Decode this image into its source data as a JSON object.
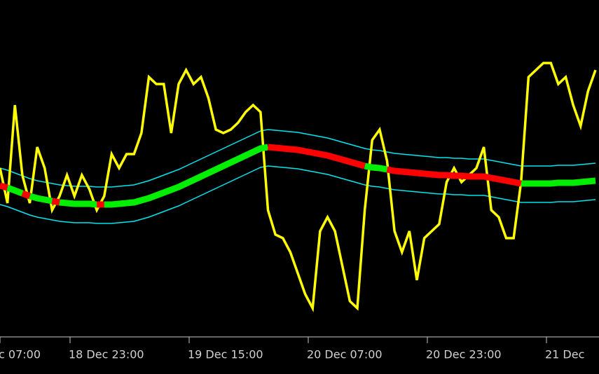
{
  "chart_data": {
    "type": "line",
    "x": [
      0,
      1,
      2,
      3,
      4,
      5,
      6,
      7,
      8,
      9,
      10,
      11,
      12,
      13,
      14,
      15,
      16,
      17,
      18,
      19,
      20,
      21,
      22,
      23,
      24,
      25,
      26,
      27,
      28,
      29,
      30,
      31,
      32,
      33,
      34,
      35,
      36,
      37,
      38,
      39,
      40,
      41,
      42,
      43,
      44,
      45,
      46,
      47,
      48,
      49,
      50,
      51,
      52,
      53,
      54,
      55,
      56,
      57,
      58,
      59,
      60,
      61,
      62,
      63,
      64,
      65,
      66,
      67,
      68,
      69,
      70,
      71,
      72,
      73,
      74,
      75,
      76,
      77,
      78,
      79,
      80
    ],
    "xlim": [
      0,
      80.47
    ],
    "xticks": [
      {
        "value": 0,
        "label": "c 07:00"
      },
      {
        "value": 9.41,
        "label": "18 Dec 23:00"
      },
      {
        "value": 25.41,
        "label": "19 Dec 15:00"
      },
      {
        "value": 41.41,
        "label": "20 Dec 07:00"
      },
      {
        "value": 57.41,
        "label": "20 Dec 23:00"
      },
      {
        "value": 73.41,
        "label": "21 Dec"
      }
    ],
    "ylim": [
      480,
      0
    ],
    "series": [
      {
        "color": "#00e5ee",
        "width": 1.5,
        "values": [
          240,
          243,
          247,
          251,
          255,
          258,
          260,
          262,
          264,
          265,
          266,
          266,
          266,
          267,
          267,
          267,
          266,
          265,
          264,
          261,
          258,
          254,
          250,
          246,
          242,
          237,
          232,
          227,
          222,
          217,
          212,
          207,
          202,
          197,
          192,
          187,
          185,
          186,
          187,
          188,
          189,
          191,
          193,
          195,
          197,
          200,
          203,
          206,
          209,
          212,
          214,
          215,
          217,
          219,
          220,
          221,
          222,
          223,
          224,
          225,
          225,
          226,
          226,
          227,
          227,
          227,
          229,
          231,
          233,
          235,
          237,
          237,
          237,
          237,
          237,
          236,
          236,
          236,
          235,
          234,
          233
        ]
      },
      {
        "color": "#00e5ee",
        "width": 1.5,
        "values": [
          292,
          295,
          299,
          303,
          307,
          310,
          312,
          314,
          316,
          317,
          318,
          318,
          318,
          319,
          319,
          319,
          318,
          317,
          316,
          313,
          310,
          306,
          302,
          298,
          294,
          289,
          284,
          279,
          274,
          269,
          264,
          259,
          254,
          249,
          244,
          239,
          237,
          238,
          239,
          240,
          241,
          243,
          245,
          247,
          249,
          252,
          255,
          258,
          261,
          264,
          266,
          267,
          269,
          271,
          272,
          273,
          274,
          275,
          276,
          277,
          277,
          278,
          278,
          279,
          279,
          279,
          281,
          283,
          285,
          287,
          289,
          289,
          289,
          289,
          289,
          288,
          288,
          288,
          287,
          286,
          285
        ]
      },
      {
        "color": "#ffff00",
        "width": 3.5,
        "values": [
          240,
          290,
          150,
          250,
          290,
          210,
          240,
          300,
          280,
          250,
          280,
          250,
          270,
          300,
          280,
          220,
          240,
          220,
          220,
          190,
          110,
          120,
          120,
          190,
          120,
          100,
          120,
          110,
          140,
          185,
          190,
          185,
          175,
          160,
          150,
          160,
          300,
          335,
          340,
          360,
          390,
          420,
          440,
          330,
          310,
          330,
          380,
          430,
          440,
          300,
          200,
          185,
          230,
          330,
          360,
          330,
          400,
          340,
          330,
          320,
          260,
          240,
          260,
          250,
          240,
          210,
          300,
          310,
          340,
          340,
          260,
          110,
          100,
          90,
          90,
          120,
          110,
          150,
          180,
          130,
          100
        ]
      },
      {
        "color": "#00ee00",
        "width": 9,
        "values": [
          null,
          268,
          272,
          276,
          280,
          283,
          285,
          287,
          289,
          290,
          291,
          291,
          291,
          292,
          292,
          292,
          291,
          290,
          289,
          286,
          283,
          279,
          275,
          271,
          267,
          262,
          257,
          252,
          247,
          242,
          237,
          232,
          227,
          222,
          217,
          212,
          210,
          null,
          null,
          null,
          null,
          null,
          null,
          null,
          null,
          null,
          null,
          null,
          null,
          237,
          239,
          240,
          242,
          null,
          null,
          null,
          null,
          null,
          null,
          null,
          null,
          null,
          null,
          null,
          null,
          null,
          null,
          null,
          null,
          null,
          262,
          262,
          262,
          262,
          262,
          261,
          261,
          261,
          260,
          259,
          258
        ]
      },
      {
        "color": "#ff0000",
        "width": 9,
        "values": [
          265,
          268,
          null,
          276,
          280,
          null,
          null,
          287,
          289,
          null,
          null,
          null,
          null,
          292,
          292,
          null,
          null,
          null,
          null,
          null,
          null,
          null,
          null,
          null,
          null,
          null,
          null,
          null,
          null,
          null,
          null,
          null,
          null,
          null,
          null,
          null,
          210,
          211,
          212,
          213,
          214,
          216,
          218,
          220,
          222,
          225,
          228,
          231,
          234,
          237,
          null,
          null,
          242,
          244,
          245,
          246,
          247,
          248,
          249,
          250,
          250,
          251,
          251,
          252,
          252,
          252,
          254,
          256,
          258,
          260,
          262,
          null,
          null,
          null,
          null,
          null,
          null,
          null,
          null,
          null,
          null
        ]
      }
    ]
  }
}
